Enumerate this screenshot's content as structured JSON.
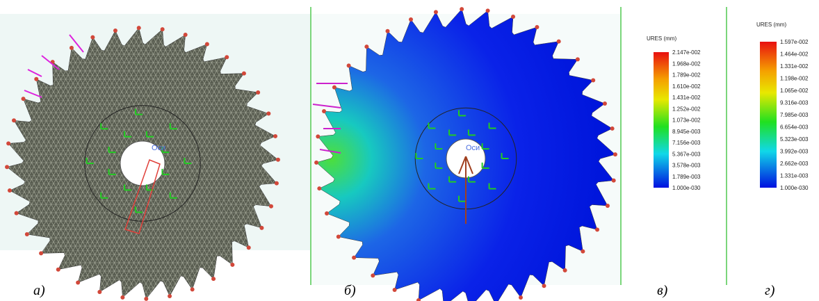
{
  "panels": {
    "a": {
      "caption": "а)",
      "axis_label": "Оси"
    },
    "b": {
      "caption": "б)",
      "axis_label": "Оси"
    },
    "c": {
      "caption": "в)",
      "legend": {
        "title": "URES (mm)",
        "labels": [
          "2.147e-002",
          "1.968e-002",
          "1.789e-002",
          "1.610e-002",
          "1.431e-002",
          "1.252e-002",
          "1.073e-002",
          "8.945e-003",
          "7.156e-003",
          "5.367e-003",
          "3.578e-003",
          "1.789e-003",
          "1.000e-030"
        ]
      }
    },
    "d": {
      "caption": "г)",
      "legend": {
        "title": "URES (mm)",
        "labels": [
          "1.597e-002",
          "1.464e-002",
          "1.331e-002",
          "1.198e-002",
          "1.065e-002",
          "9.316e-003",
          "7.985e-003",
          "6.654e-003",
          "5.323e-003",
          "3.992e-003",
          "2.662e-003",
          "1.331e-003",
          "1.000e-030"
        ]
      }
    }
  }
}
